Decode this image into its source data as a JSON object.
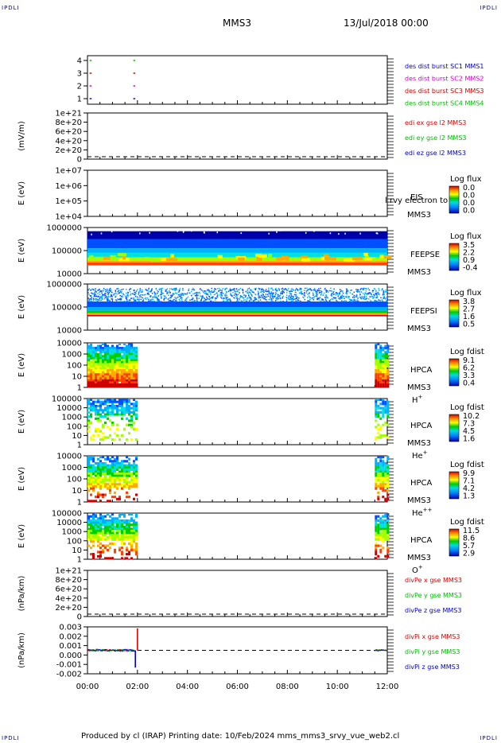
{
  "corners": {
    "tl": "IPDLI",
    "tr": "IPDLI",
    "bl": "IPDLI",
    "br": "IPDLI"
  },
  "header": {
    "mission": "MMS3",
    "date": "13/Jul/2018 00:00"
  },
  "footer": {
    "text": "Produced by cl (IRAP)   Printing date: 10/Feb/2024   mms_mms3_srvy_vue_web2.cl"
  },
  "time_axis": {
    "ticks": [
      "00:00",
      "02:00",
      "04:00",
      "06:00",
      "08:00",
      "10:00",
      "12:00"
    ]
  },
  "colors": {
    "mms1": "#0000cc",
    "mms2": "#cc00cc",
    "mms3": "#cc0000",
    "mms4": "#00bb00",
    "x": "#dd0000",
    "y": "#00bb00",
    "z": "#0000cc"
  },
  "chart_data": [
    {
      "type": "line",
      "panel": "des dist burst availability",
      "yticks": [
        "4",
        "3",
        "2",
        "1"
      ],
      "series": [
        {
          "name": "des dist burst SC1 MMS1",
          "level": 1,
          "segments": [
            [
              "00:05",
              "00:10"
            ],
            [
              "01:50",
              "01:55"
            ]
          ]
        },
        {
          "name": "des dist burst SC2 MMS2",
          "level": 2,
          "segments": [
            [
              "00:05",
              "00:10"
            ],
            [
              "01:50",
              "01:55"
            ]
          ]
        },
        {
          "name": "des dist burst SC3 MMS3",
          "level": 3,
          "segments": [
            [
              "00:05",
              "00:10"
            ],
            [
              "01:50",
              "01:55"
            ]
          ]
        },
        {
          "name": "des dist burst SC4 MMS4",
          "level": 4,
          "segments": [
            [
              "00:05",
              "00:10"
            ],
            [
              "01:50",
              "01:55"
            ]
          ]
        }
      ],
      "legend": [
        "des dist burst SC1 MMS1",
        "des dist burst SC2 MMS2",
        "des dist burst SC3 MMS3",
        "des dist burst SC4 MMS4"
      ]
    },
    {
      "type": "line",
      "panel": "edi E field",
      "ylabel": "(mV/m)",
      "yticks": [
        "1e+21",
        "8e+20",
        "6e+20",
        "4e+20",
        "2e+20",
        "0"
      ],
      "legend": [
        "edi ex gse l2 MMS3",
        "edi ey gse l2 MMS3",
        "edi ez gse l2 MMS3"
      ],
      "zero_line": true
    },
    {
      "type": "heatmap",
      "panel": "EIS",
      "ylabel": "E (eV)",
      "yticks": [
        "1e+07",
        "1e+06",
        "1e+05",
        "1e+04"
      ],
      "labels": [
        "EIS",
        "MMS3"
      ],
      "overlay_text": "l rvy electron to",
      "colorbar": {
        "title": "Log flux",
        "ticks": [
          "0.0",
          "0.0",
          "0.0",
          "0.0"
        ]
      }
    },
    {
      "type": "heatmap",
      "panel": "FEEPSE",
      "ylabel": "E (eV)",
      "yticks": [
        "1000000",
        "100000",
        "10000"
      ],
      "labels": [
        "FEEPSE",
        "MMS3"
      ],
      "colorbar": {
        "title": "Log flux",
        "ticks": [
          "3.5",
          "2.2",
          "0.9",
          "-0.4"
        ]
      }
    },
    {
      "type": "heatmap",
      "panel": "FEEPSI",
      "ylabel": "E (eV)",
      "yticks": [
        "1000000",
        "100000",
        "10000"
      ],
      "labels": [
        "FEEPSI",
        "MMS3"
      ],
      "colorbar": {
        "title": "Log flux",
        "ticks": [
          "3.8",
          "2.7",
          "1.6",
          "0.5"
        ]
      }
    },
    {
      "type": "heatmap",
      "panel": "HPCA H+",
      "ylabel": "E (eV)",
      "yticks": [
        "10000",
        "1000",
        "100",
        "10",
        "1"
      ],
      "labels": [
        "HPCA",
        "MMS3"
      ],
      "species": "H",
      "charge": "+",
      "coverage": [
        [
          "00:00",
          "02:00"
        ],
        [
          "11:30",
          "12:00"
        ]
      ],
      "colorbar": {
        "title": "Log fdist",
        "ticks": [
          "9.1",
          "6.2",
          "3.3",
          "0.4"
        ]
      }
    },
    {
      "type": "heatmap",
      "panel": "HPCA He+",
      "ylabel": "E (eV)",
      "yticks": [
        "100000",
        "10000",
        "1000",
        "100",
        "10",
        "1"
      ],
      "labels": [
        "HPCA",
        "MMS3"
      ],
      "species": "He",
      "charge": "+",
      "coverage": [
        [
          "00:00",
          "02:00"
        ],
        [
          "11:30",
          "12:00"
        ]
      ],
      "colorbar": {
        "title": "Log fdist",
        "ticks": [
          "10.2",
          "7.3",
          "4.5",
          "1.6"
        ]
      }
    },
    {
      "type": "heatmap",
      "panel": "HPCA He++",
      "ylabel": "E (eV)",
      "yticks": [
        "10000",
        "1000",
        "100",
        "10",
        "1"
      ],
      "labels": [
        "HPCA",
        "MMS3"
      ],
      "species": "He",
      "charge": "++",
      "coverage": [
        [
          "00:00",
          "02:00"
        ],
        [
          "11:30",
          "12:00"
        ]
      ],
      "colorbar": {
        "title": "Log fdist",
        "ticks": [
          "9.9",
          "7.1",
          "4.2",
          "1.3"
        ]
      }
    },
    {
      "type": "heatmap",
      "panel": "HPCA O+",
      "ylabel": "E (eV)",
      "yticks": [
        "100000",
        "10000",
        "1000",
        "100",
        "10",
        "1"
      ],
      "labels": [
        "HPCA",
        "MMS3"
      ],
      "species": "O",
      "charge": "+",
      "coverage": [
        [
          "00:00",
          "02:00"
        ],
        [
          "11:30",
          "12:00"
        ]
      ],
      "colorbar": {
        "title": "Log fdist",
        "ticks": [
          "11.5",
          "8.6",
          "5.7",
          "2.9"
        ]
      }
    },
    {
      "type": "line",
      "panel": "divPe",
      "ylabel": "(nPa/km)",
      "yticks": [
        "1e+21",
        "8e+20",
        "6e+20",
        "4e+20",
        "2e+20",
        "0"
      ],
      "legend": [
        "divPe x gse MMS3",
        "divPe y gse MMS3",
        "divPe z gse MMS3"
      ],
      "zero_line": true
    },
    {
      "type": "line",
      "panel": "divPi",
      "ylabel": "(nPa/km)",
      "yticks": [
        "0.003",
        "0.002",
        "0.001",
        "0.000",
        "-0.001",
        "-0.002"
      ],
      "ylim": [
        -0.003,
        0.003
      ],
      "legend": [
        "divPi x gse MMS3",
        "divPi y gse MMS3",
        "divPi z gse MMS3"
      ],
      "spikes": [
        {
          "series": "x",
          "time": "02:00",
          "value": 0.0028
        },
        {
          "series": "z",
          "time": "01:55",
          "value": -0.0022
        }
      ],
      "zero_line": true
    }
  ]
}
